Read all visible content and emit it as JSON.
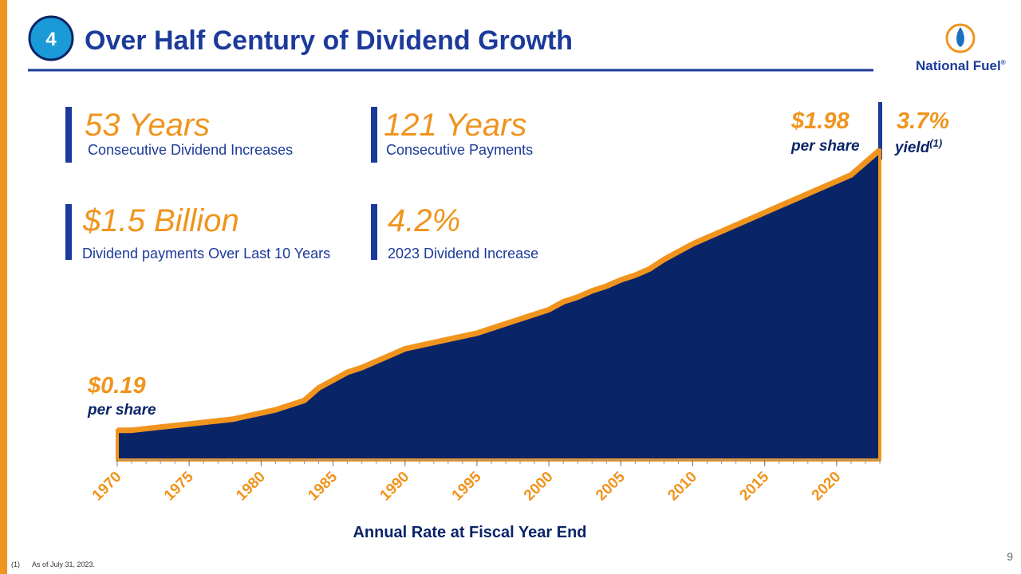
{
  "slide": {
    "badge": "4",
    "title": "Over Half Century of Dividend Growth",
    "logo": "National Fuel",
    "logo_mark": "®",
    "stats": [
      {
        "value": "53 Years",
        "label": "Consecutive Dividend Increases"
      },
      {
        "value": "121 Years",
        "label": "Consecutive Payments"
      },
      {
        "value": "$1.5 Billion",
        "label": "Dividend payments Over Last 10 Years"
      },
      {
        "value": "4.2%",
        "label": "2023 Dividend Increase"
      }
    ],
    "footnote_marker": "(1)",
    "footnote": "As of July 31, 2023.",
    "page_number": "9"
  },
  "chart_data": {
    "type": "area",
    "x_label": "Annual Rate at Fiscal Year End",
    "x": [
      1970,
      1971,
      1972,
      1973,
      1974,
      1975,
      1976,
      1977,
      1978,
      1979,
      1980,
      1981,
      1982,
      1983,
      1984,
      1985,
      1986,
      1987,
      1988,
      1989,
      1990,
      1991,
      1992,
      1993,
      1994,
      1995,
      1996,
      1997,
      1998,
      1999,
      2000,
      2001,
      2002,
      2003,
      2004,
      2005,
      2006,
      2007,
      2008,
      2009,
      2010,
      2011,
      2012,
      2013,
      2014,
      2015,
      2016,
      2017,
      2018,
      2019,
      2020,
      2021,
      2022,
      2023
    ],
    "values": [
      0.19,
      0.19,
      0.2,
      0.21,
      0.22,
      0.23,
      0.24,
      0.25,
      0.26,
      0.28,
      0.3,
      0.32,
      0.35,
      0.38,
      0.46,
      0.51,
      0.56,
      0.59,
      0.63,
      0.67,
      0.71,
      0.73,
      0.75,
      0.77,
      0.79,
      0.81,
      0.84,
      0.87,
      0.9,
      0.93,
      0.96,
      1.01,
      1.04,
      1.08,
      1.11,
      1.15,
      1.18,
      1.22,
      1.28,
      1.33,
      1.38,
      1.42,
      1.46,
      1.5,
      1.54,
      1.58,
      1.62,
      1.66,
      1.7,
      1.74,
      1.78,
      1.82,
      1.9,
      1.98
    ],
    "xlim": [
      1970,
      2023
    ],
    "xticks": [
      1970,
      1975,
      1980,
      1985,
      1990,
      1995,
      2000,
      2005,
      2010,
      2015,
      2020
    ],
    "color": "#0a2468",
    "line_color": "#f0941e",
    "annotations": {
      "start_value": "$0.19",
      "start_unit": "per share",
      "end_value": "$1.98",
      "end_unit": "per share",
      "yield_value": "3.7%",
      "yield_label": "yield",
      "yield_note": "(1)"
    }
  }
}
